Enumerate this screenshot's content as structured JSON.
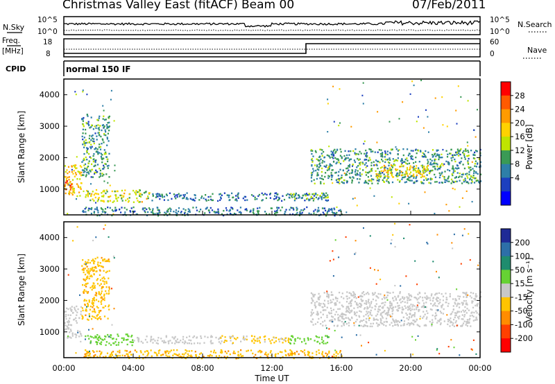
{
  "header": {
    "title": "Christmas Valley East (fitACF)",
    "beam": "Beam 00",
    "date": "07/Feb/2011"
  },
  "status_panel": {
    "nsky_label": "N.Sky",
    "nsearch_label": "N.Search",
    "count_ticks": [
      "10^5",
      "10^0"
    ],
    "freq_label_1": "Freq.",
    "freq_label_2": "[MHz]",
    "freq_ticks": [
      18,
      8
    ],
    "nave_label": "Nave",
    "nave_ticks": [
      60,
      0
    ],
    "cpid_label": "CPID",
    "cpid_text": "normal 150 IF"
  },
  "colorbars": {
    "power": {
      "label": "Power [dB]",
      "ticks": [
        28,
        24,
        20,
        16,
        12,
        8,
        4
      ],
      "colors": [
        "#ff0000",
        "#ff5a00",
        "#ff9b00",
        "#ffd200",
        "#bfe400",
        "#3a9a55",
        "#2e7fa8",
        "#1c3fbf",
        "#0000ff"
      ]
    },
    "velocity": {
      "label": "Velocity [m s⁻¹]",
      "ticks": [
        200,
        100,
        50,
        15,
        -15,
        -50,
        -100,
        -200
      ],
      "colors": [
        "#1f2a96",
        "#2d6fa8",
        "#1f8c6e",
        "#66d233",
        "#c8c8c8",
        "#ffc400",
        "#ff8c00",
        "#ff4000",
        "#ff0000"
      ]
    }
  },
  "chart_data": [
    {
      "type": "heatmap",
      "name": "power",
      "ylabel": "Slant Range [km]",
      "colorbar_label": "Power [dB]",
      "x_range_hours": [
        0,
        24
      ],
      "y_range_km": [
        180,
        4500
      ],
      "y_ticks": [
        1000,
        2000,
        3000,
        4000
      ],
      "regions": [
        {
          "t0": 0.0,
          "t1": 1.0,
          "r0": 800,
          "r1": 1850,
          "value": 20
        },
        {
          "t0": 0.0,
          "t1": 0.5,
          "r0": 1000,
          "r1": 1300,
          "value": 27
        },
        {
          "t0": 1.0,
          "t1": 2.6,
          "r0": 1400,
          "r1": 3400,
          "value": 10
        },
        {
          "t0": 1.2,
          "t1": 5.0,
          "r0": 600,
          "r1": 1000,
          "value": 16
        },
        {
          "t0": 5.0,
          "t1": 9.0,
          "r0": 650,
          "r1": 900,
          "value": 8
        },
        {
          "t0": 9.0,
          "t1": 15.2,
          "r0": 650,
          "r1": 900,
          "value": 7
        },
        {
          "t0": 13.0,
          "t1": 15.2,
          "r0": 700,
          "r1": 900,
          "value": 12
        },
        {
          "t0": 1.0,
          "t1": 16.0,
          "r0": 180,
          "r1": 450,
          "value": 8
        },
        {
          "t0": 14.2,
          "t1": 24.0,
          "r0": 1200,
          "r1": 2300,
          "value": 10
        },
        {
          "t0": 18.0,
          "t1": 21.0,
          "r0": 1400,
          "r1": 1800,
          "value": 18
        }
      ]
    },
    {
      "type": "heatmap",
      "name": "velocity",
      "xlabel": "Time UT",
      "ylabel": "Slant Range [km]",
      "colorbar_label": "Velocity [m s⁻¹]",
      "x_range_hours": [
        0,
        24
      ],
      "x_ticks": [
        "00:00",
        "04:00",
        "08:00",
        "12:00",
        "16:00",
        "20:00",
        "00:00"
      ],
      "y_range_km": [
        180,
        4500
      ],
      "y_ticks": [
        1000,
        2000,
        3000,
        4000
      ],
      "regions": [
        {
          "t0": 0.0,
          "t1": 1.0,
          "r0": 800,
          "r1": 1850,
          "value": 0
        },
        {
          "t0": 1.0,
          "t1": 2.6,
          "r0": 1400,
          "r1": 3400,
          "value": -40
        },
        {
          "t0": 1.2,
          "t1": 4.0,
          "r0": 600,
          "r1": 950,
          "value": 30
        },
        {
          "t0": 4.0,
          "t1": 9.0,
          "r0": 650,
          "r1": 900,
          "value": 0
        },
        {
          "t0": 9.0,
          "t1": 13.0,
          "r0": 650,
          "r1": 900,
          "value": -20
        },
        {
          "t0": 13.0,
          "t1": 15.2,
          "r0": 650,
          "r1": 900,
          "value": 30
        },
        {
          "t0": 1.0,
          "t1": 16.0,
          "r0": 180,
          "r1": 450,
          "value": -40
        },
        {
          "t0": 14.2,
          "t1": 24.0,
          "r0": 1200,
          "r1": 2300,
          "value": 0
        }
      ]
    }
  ]
}
